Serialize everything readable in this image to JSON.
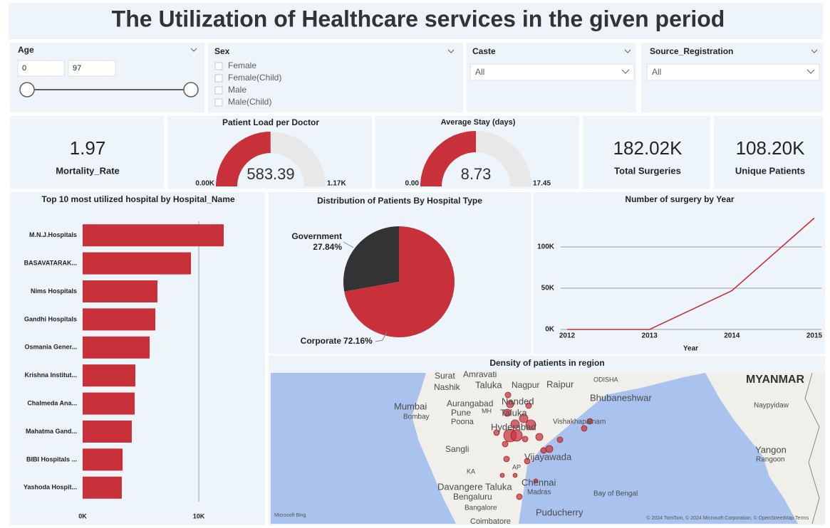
{
  "header": {
    "title": "The Utilization of Healthcare services in the given period"
  },
  "filters": {
    "age": {
      "label": "Age",
      "min": 0,
      "max": 97
    },
    "sex": {
      "label": "Sex",
      "options": [
        "Female",
        "Female(Child)",
        "Male",
        "Male(Child)"
      ]
    },
    "caste": {
      "label": "Caste",
      "selected": "All"
    },
    "source": {
      "label": "Source_Registration",
      "selected": "All"
    }
  },
  "cards": [
    {
      "value": "1.97",
      "label": "Mortality_Rate"
    },
    {
      "value": "182.02K",
      "label": "Total Surgeries"
    },
    {
      "value": "108.20K",
      "label": "Unique Patients"
    }
  ],
  "chart_data": [
    {
      "type": "gauge",
      "title": "Patient Load per Doctor",
      "value": 583.39,
      "min": {
        "value": 0,
        "label": "0.00K"
      },
      "max": {
        "value": 1170,
        "label": "1.17K"
      },
      "color": "#c8303a",
      "track_color": "#e8e8e8"
    },
    {
      "type": "gauge",
      "title": "Average Stay (days)",
      "value": 8.73,
      "min": {
        "value": 0,
        "label": "0.00"
      },
      "max": 17.45,
      "color": "#c8303a",
      "track_color": "#e8e8e8"
    },
    {
      "type": "bar",
      "orientation": "horizontal",
      "title": "Top 10 most utilized hospital by Hospital_Name",
      "categories": [
        "M.N.J.Hospitals",
        "BASAVATARAK...",
        "Nims Hospitals",
        "Gandhi Hospitals",
        "Osmania Gener...",
        "Krishna Institut...",
        "Chalmeda Ana...",
        "Mahatma Gand...",
        "BIBI Hospitals ...",
        "Yashoda Hospit..."
      ],
      "values": [
        12150,
        9330,
        6440,
        6260,
        5770,
        4540,
        4480,
        4230,
        3440,
        3370
      ],
      "color": "#c8303a",
      "xlim": [
        0,
        15000
      ],
      "xticks": [
        {
          "value": 0,
          "label": "0K"
        },
        {
          "value": 10000,
          "label": "10K"
        }
      ],
      "grid": true
    },
    {
      "type": "pie",
      "title": "Distribution of Patients By Hospital Type",
      "categories": [
        "Government",
        "Corporate"
      ],
      "values": [
        27.84,
        72.16
      ],
      "value_labels": [
        "27.84%",
        "72.16%"
      ],
      "colors": [
        "#333333",
        "#c8303a"
      ]
    },
    {
      "type": "line",
      "title": "Number of surgery by Year",
      "x": [
        2012,
        2013,
        2014,
        2015
      ],
      "values": [
        0,
        0,
        47000,
        135000
      ],
      "color": "#c8303a",
      "xlabel": "Year",
      "xlim": [
        2012,
        2015
      ],
      "ylim": [
        0,
        140000
      ],
      "xticks": [
        2012,
        2013,
        2014,
        2015
      ],
      "yticks": [
        {
          "value": 0,
          "label": "0K"
        },
        {
          "value": 50000,
          "label": "50K"
        },
        {
          "value": 100000,
          "label": "100K"
        }
      ],
      "grid": true
    }
  ],
  "map": {
    "title": "Density of patients in region",
    "labels": [
      "Surat",
      "Amravati",
      "Nashik",
      "Taluka",
      "Nagpur",
      "Raipur",
      "ODISHA",
      "MYANMAR",
      "Mumbai",
      "Bombay",
      "Aurangabad",
      "Pune",
      "MH",
      "Poona",
      "Nanded",
      "Taluka",
      "Bhubaneshwar",
      "Naypyidaw",
      "Hyderabad",
      "Vishakhapatnam",
      "Sangli",
      "Yangon",
      "Rangoon",
      "Vijayawada",
      "KA",
      "AP",
      "Davangere Taluka",
      "Chennai",
      "Bengaluru",
      "Madras",
      "Bay of Bengal",
      "Bangalore",
      "Puducherry",
      "Coimbatore"
    ],
    "attribution": [
      "Microsoft Bing",
      "© 2024 TomTom, © 2024 Microsoft Corporation, © OpenStreetMap  Terms"
    ]
  }
}
